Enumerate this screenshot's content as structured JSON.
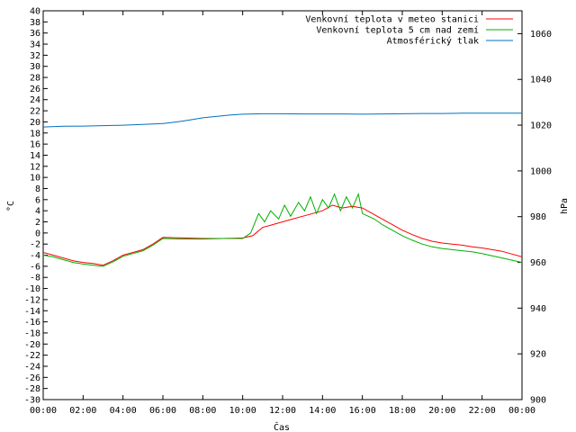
{
  "chart_data": {
    "type": "line",
    "xlabel": "Čas",
    "ylabel_left": "°C",
    "ylabel_right": "hPa",
    "ylim_left": [
      -30,
      40
    ],
    "ylim_right": [
      900,
      1070
    ],
    "xlim": [
      0,
      24
    ],
    "grid": false,
    "legend_position": "top-right",
    "x_ticks": [
      "00:00",
      "02:00",
      "04:00",
      "06:00",
      "08:00",
      "10:00",
      "12:00",
      "14:00",
      "16:00",
      "18:00",
      "20:00",
      "22:00",
      "00:00"
    ],
    "y_ticks_left": [
      -30,
      -28,
      -26,
      -24,
      -22,
      -20,
      -18,
      -16,
      -14,
      -12,
      -10,
      -8,
      -6,
      -4,
      -2,
      0,
      2,
      4,
      6,
      8,
      10,
      12,
      14,
      16,
      18,
      20,
      22,
      24,
      26,
      28,
      30,
      32,
      34,
      36,
      38,
      40
    ],
    "y_ticks_right": [
      900,
      920,
      940,
      960,
      980,
      1000,
      1020,
      1040,
      1060
    ],
    "series": [
      {
        "name": "Venkovní teplota v meteo stanici",
        "color": "#ff0000",
        "axis": "left",
        "x": [
          0,
          0.5,
          1,
          1.5,
          2,
          2.5,
          3,
          3.5,
          4,
          4.5,
          5,
          5.5,
          6,
          7,
          8,
          9,
          10,
          10.5,
          11,
          11.5,
          12,
          12.5,
          13,
          13.5,
          14,
          14.5,
          15,
          15.5,
          16,
          16.5,
          17,
          17.5,
          18,
          18.5,
          19,
          19.5,
          20,
          20.5,
          21,
          21.5,
          22,
          22.5,
          23,
          23.5,
          24
        ],
        "y": [
          -3.5,
          -4,
          -4.5,
          -5,
          -5.3,
          -5.5,
          -5.8,
          -5,
          -4,
          -3.5,
          -3,
          -2,
          -0.8,
          -0.9,
          -1,
          -1,
          -0.9,
          -0.5,
          1,
          1.5,
          2,
          2.5,
          3,
          3.5,
          4,
          5,
          4.5,
          4.8,
          4.5,
          3.5,
          2.5,
          1.5,
          0.5,
          -0.3,
          -1,
          -1.5,
          -1.8,
          -2,
          -2.2,
          -2.5,
          -2.7,
          -3,
          -3.3,
          -3.8,
          -4.3
        ]
      },
      {
        "name": "Venkovní teplota 5 cm nad zemí",
        "color": "#00b000",
        "axis": "left",
        "x": [
          0,
          0.5,
          1,
          1.5,
          2,
          2.5,
          3,
          3.5,
          4,
          4.5,
          5,
          5.5,
          6,
          7,
          8,
          9,
          10,
          10.4,
          10.8,
          11.1,
          11.4,
          11.8,
          12.1,
          12.4,
          12.8,
          13.1,
          13.4,
          13.7,
          14,
          14.3,
          14.6,
          14.9,
          15.2,
          15.5,
          15.8,
          16,
          16.3,
          16.6,
          17,
          17.5,
          18,
          18.5,
          19,
          19.5,
          20,
          20.5,
          21,
          21.5,
          22,
          22.5,
          23,
          23.5,
          24
        ],
        "y": [
          -4,
          -4.3,
          -4.8,
          -5.3,
          -5.6,
          -5.8,
          -6,
          -5.2,
          -4.2,
          -3.7,
          -3.2,
          -2.2,
          -1,
          -1.1,
          -1.1,
          -1,
          -1,
          0,
          3.5,
          2,
          4,
          2.5,
          5,
          3,
          5.5,
          4,
          6.5,
          3.5,
          6,
          4.5,
          7,
          4,
          6.5,
          4.5,
          7,
          3.5,
          3,
          2.5,
          1.5,
          0.5,
          -0.5,
          -1.3,
          -2,
          -2.5,
          -2.8,
          -3,
          -3.2,
          -3.4,
          -3.7,
          -4.1,
          -4.5,
          -4.9,
          -5.3
        ]
      },
      {
        "name": "Atmosférický tlak",
        "color": "#0070c0",
        "axis": "right",
        "x": [
          0,
          1,
          2,
          3,
          4,
          5,
          6,
          6.5,
          7,
          7.5,
          8,
          8.5,
          9,
          9.5,
          10,
          11,
          12,
          13,
          14,
          15,
          16,
          17,
          18,
          19,
          20,
          21,
          22,
          23,
          24
        ],
        "y": [
          1019.2,
          1019.5,
          1019.6,
          1019.8,
          1020,
          1020.3,
          1020.7,
          1021.2,
          1021.8,
          1022.5,
          1023.2,
          1023.7,
          1024.1,
          1024.5,
          1024.8,
          1025,
          1025,
          1024.9,
          1024.9,
          1024.9,
          1024.8,
          1024.9,
          1025,
          1025.1,
          1025.1,
          1025.2,
          1025.2,
          1025.2,
          1025.2
        ]
      }
    ]
  }
}
